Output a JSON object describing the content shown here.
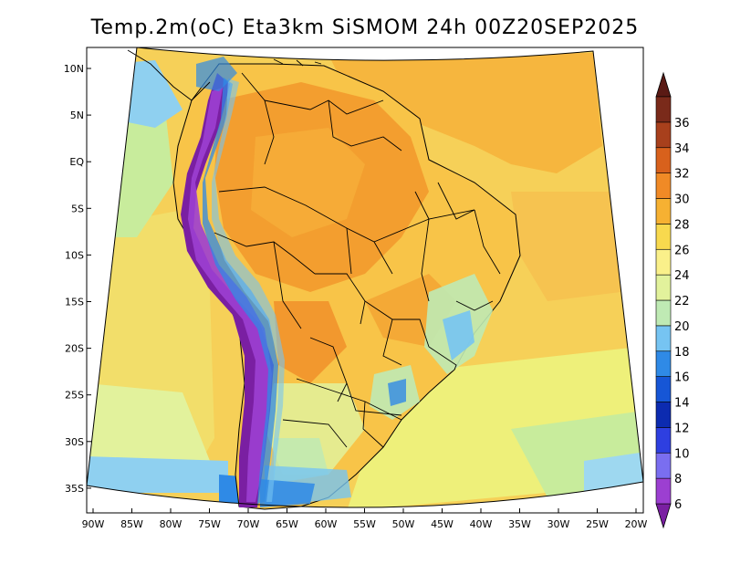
{
  "title": "Temp.2m(oC) Eta3km SiSMOM 24h 00Z20SEP2025",
  "map": {
    "lon_labels": [
      "90W",
      "85W",
      "80W",
      "75W",
      "70W",
      "65W",
      "60W",
      "55W",
      "50W",
      "45W",
      "40W",
      "35W",
      "30W",
      "25W",
      "20W"
    ],
    "lat_labels": [
      "10N",
      "5N",
      "EQ",
      "5S",
      "10S",
      "15S",
      "20S",
      "25S",
      "30S",
      "35S"
    ]
  },
  "colorbar": {
    "labels": [
      "6",
      "8",
      "10",
      "12",
      "14",
      "16",
      "18",
      "20",
      "22",
      "24",
      "26",
      "28",
      "30",
      "32",
      "34",
      "36"
    ],
    "colors": [
      "#7a1fa2",
      "#9c3fd1",
      "#7a6ef0",
      "#2e3fe0",
      "#0c2bb0",
      "#1656d6",
      "#2f8ae6",
      "#76c4f2",
      "#bfeab4",
      "#e2f29c",
      "#faf08a",
      "#f8d94e",
      "#f6b132",
      "#f08a26",
      "#d8611c",
      "#a8401c",
      "#7a2a1a",
      "#5a1a14"
    ]
  }
}
